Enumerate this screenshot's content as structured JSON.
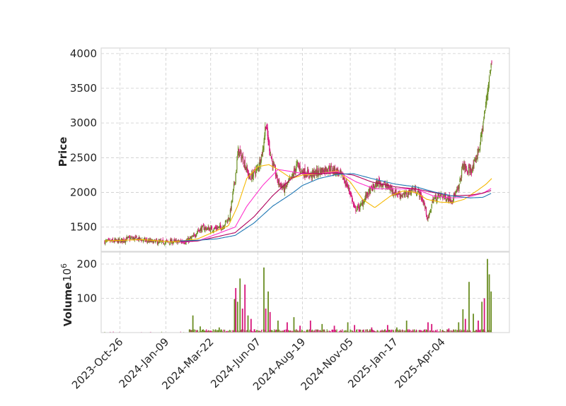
{
  "chart_data": {
    "type": "candlestick",
    "title": "",
    "colors": {
      "up": "#6b8e23",
      "down": "#d6157a",
      "ma_a": "#f5b800",
      "ma_b": "#ff33cc",
      "ma_c": "#b0005c",
      "ma_d": "#1f77b4",
      "grid": "#cccccc",
      "frame": "#d9d9d9"
    },
    "x_axis": {
      "start": "2023-10-01",
      "end": "2025-06-24",
      "tick_dates": [
        "2023-10-26",
        "2024-01-09",
        "2024-03-22",
        "2024-06-07",
        "2024-08-19",
        "2024-11-05",
        "2025-01-17",
        "2025-04-04"
      ],
      "tick_labels": [
        "2023-Oct-26",
        "2024-Jan-09",
        "2024-Mar-22",
        "2024-Jun-07",
        "2024-Aug-19",
        "2024-Nov-05",
        "2025-Jan-17",
        "2025-Apr-04"
      ]
    },
    "price_panel": {
      "ylabel": "Price",
      "ylim": [
        1150,
        4080
      ],
      "yticks": [
        1500,
        2000,
        2500,
        3000,
        3500,
        4000
      ],
      "ytick_labels": [
        "1500",
        "2000",
        "2500",
        "3000",
        "3500",
        "4000"
      ],
      "close_path": [
        [
          "2023-10-01",
          1290
        ],
        [
          "2023-10-26",
          1300
        ],
        [
          "2023-11-10",
          1340
        ],
        [
          "2023-11-25",
          1330
        ],
        [
          "2023-12-10",
          1300
        ],
        [
          "2024-01-01",
          1280
        ],
        [
          "2024-01-20",
          1290
        ],
        [
          "2024-02-10",
          1290
        ],
        [
          "2024-02-22",
          1350
        ],
        [
          "2024-03-01",
          1450
        ],
        [
          "2024-03-10",
          1490
        ],
        [
          "2024-03-22",
          1470
        ],
        [
          "2024-04-10",
          1500
        ],
        [
          "2024-04-22",
          1650
        ],
        [
          "2024-05-01",
          2200
        ],
        [
          "2024-05-06",
          2600
        ],
        [
          "2024-05-15",
          2450
        ],
        [
          "2024-05-25",
          2200
        ],
        [
          "2024-06-07",
          2350
        ],
        [
          "2024-06-15",
          2600
        ],
        [
          "2024-06-20",
          3000
        ],
        [
          "2024-06-23",
          2800
        ],
        [
          "2024-06-30",
          2450
        ],
        [
          "2024-07-10",
          2150
        ],
        [
          "2024-07-20",
          2050
        ],
        [
          "2024-08-01",
          2200
        ],
        [
          "2024-08-10",
          2400
        ],
        [
          "2024-08-19",
          2300
        ],
        [
          "2024-09-01",
          2250
        ],
        [
          "2024-09-15",
          2300
        ],
        [
          "2024-10-01",
          2350
        ],
        [
          "2024-10-15",
          2300
        ],
        [
          "2024-10-25",
          2200
        ],
        [
          "2024-11-05",
          2000
        ],
        [
          "2024-11-12",
          1750
        ],
        [
          "2024-11-22",
          1800
        ],
        [
          "2024-12-01",
          1950
        ],
        [
          "2024-12-10",
          2050
        ],
        [
          "2024-12-22",
          2150
        ],
        [
          "2025-01-01",
          2100
        ],
        [
          "2025-01-10",
          2050
        ],
        [
          "2025-01-17",
          2000
        ],
        [
          "2025-02-01",
          1950
        ],
        [
          "2025-02-15",
          2050
        ],
        [
          "2025-02-25",
          2000
        ],
        [
          "2025-03-05",
          1850
        ],
        [
          "2025-03-12",
          1600
        ],
        [
          "2025-03-20",
          1900
        ],
        [
          "2025-04-01",
          1950
        ],
        [
          "2025-04-04",
          1950
        ],
        [
          "2025-04-20",
          1900
        ],
        [
          "2025-05-01",
          2050
        ],
        [
          "2025-05-08",
          2400
        ],
        [
          "2025-05-15",
          2300
        ],
        [
          "2025-05-25",
          2350
        ],
        [
          "2025-06-05",
          2700
        ],
        [
          "2025-06-15",
          3300
        ],
        [
          "2025-06-20",
          3700
        ],
        [
          "2025-06-24",
          3850
        ]
      ],
      "ma_a_path": [
        [
          "2023-10-01",
          1300
        ],
        [
          "2023-12-01",
          1320
        ],
        [
          "2024-01-20",
          1285
        ],
        [
          "2024-03-01",
          1330
        ],
        [
          "2024-04-01",
          1450
        ],
        [
          "2024-04-20",
          1520
        ],
        [
          "2024-05-05",
          1800
        ],
        [
          "2024-05-20",
          2200
        ],
        [
          "2024-06-07",
          2370
        ],
        [
          "2024-06-25",
          2400
        ],
        [
          "2024-07-10",
          2330
        ],
        [
          "2024-08-01",
          2200
        ],
        [
          "2024-08-19",
          2250
        ],
        [
          "2024-09-15",
          2270
        ],
        [
          "2024-10-15",
          2310
        ],
        [
          "2024-11-05",
          2150
        ],
        [
          "2024-11-25",
          1900
        ],
        [
          "2024-12-15",
          1780
        ],
        [
          "2025-01-10",
          1950
        ],
        [
          "2025-01-30",
          2020
        ],
        [
          "2025-02-20",
          2000
        ],
        [
          "2025-03-10",
          1900
        ],
        [
          "2025-04-01",
          1860
        ],
        [
          "2025-04-20",
          1850
        ],
        [
          "2025-05-10",
          1900
        ],
        [
          "2025-06-01",
          2030
        ],
        [
          "2025-06-15",
          2120
        ],
        [
          "2025-06-24",
          2200
        ]
      ],
      "ma_b_path": [
        [
          "2024-02-01",
          1280
        ],
        [
          "2024-03-01",
          1300
        ],
        [
          "2024-04-01",
          1400
        ],
        [
          "2024-05-01",
          1500
        ],
        [
          "2024-05-20",
          1800
        ],
        [
          "2024-06-15",
          2100
        ],
        [
          "2024-07-10",
          2330
        ],
        [
          "2024-08-01",
          2300
        ],
        [
          "2024-08-19",
          2270
        ],
        [
          "2024-09-15",
          2270
        ],
        [
          "2024-10-15",
          2300
        ],
        [
          "2024-11-15",
          2150
        ],
        [
          "2024-12-15",
          2050
        ],
        [
          "2025-01-17",
          2050
        ],
        [
          "2025-02-20",
          2050
        ],
        [
          "2025-03-20",
          1950
        ],
        [
          "2025-04-20",
          1920
        ],
        [
          "2025-05-15",
          1930
        ],
        [
          "2025-06-10",
          1990
        ],
        [
          "2025-06-24",
          2060
        ]
      ],
      "ma_c_path": [
        [
          "2024-02-01",
          1290
        ],
        [
          "2024-03-01",
          1300
        ],
        [
          "2024-04-01",
          1360
        ],
        [
          "2024-05-01",
          1420
        ],
        [
          "2024-06-01",
          1650
        ],
        [
          "2024-07-01",
          1950
        ],
        [
          "2024-08-01",
          2200
        ],
        [
          "2024-08-19",
          2280
        ],
        [
          "2024-09-15",
          2270
        ],
        [
          "2024-10-15",
          2280
        ],
        [
          "2024-11-10",
          2250
        ],
        [
          "2024-12-10",
          2150
        ],
        [
          "2025-01-17",
          2080
        ],
        [
          "2025-02-20",
          2050
        ],
        [
          "2025-03-20",
          2000
        ],
        [
          "2025-04-20",
          1950
        ],
        [
          "2025-05-20",
          1960
        ],
        [
          "2025-06-10",
          1990
        ],
        [
          "2025-06-24",
          2030
        ]
      ],
      "ma_d_path": [
        [
          "2024-02-01",
          1300
        ],
        [
          "2024-03-01",
          1310
        ],
        [
          "2024-04-01",
          1330
        ],
        [
          "2024-05-01",
          1380
        ],
        [
          "2024-06-01",
          1560
        ],
        [
          "2024-07-01",
          1800
        ],
        [
          "2024-08-01",
          1980
        ],
        [
          "2024-08-19",
          2100
        ],
        [
          "2024-09-15",
          2200
        ],
        [
          "2024-10-15",
          2260
        ],
        [
          "2024-11-10",
          2270
        ],
        [
          "2024-12-10",
          2200
        ],
        [
          "2025-01-17",
          2120
        ],
        [
          "2025-02-20",
          2080
        ],
        [
          "2025-03-20",
          2010
        ],
        [
          "2025-04-20",
          1950
        ],
        [
          "2025-05-20",
          1920
        ],
        [
          "2025-06-10",
          1930
        ],
        [
          "2025-06-24",
          1990
        ]
      ]
    },
    "volume_panel": {
      "ylabel": "Volume",
      "exponent_label": "10",
      "exponent_power": "6",
      "ylim": [
        0,
        235
      ],
      "yticks": [
        100,
        200
      ],
      "ytick_labels": [
        "100",
        "200"
      ],
      "spikes": [
        [
          "2024-02-22",
          50,
          "up"
        ],
        [
          "2024-03-05",
          18,
          "up"
        ],
        [
          "2024-04-05",
          15,
          "up"
        ],
        [
          "2024-04-30",
          98,
          "up"
        ],
        [
          "2024-05-02",
          130,
          "down"
        ],
        [
          "2024-05-05",
          90,
          "up"
        ],
        [
          "2024-05-09",
          158,
          "up"
        ],
        [
          "2024-05-13",
          70,
          "down"
        ],
        [
          "2024-05-17",
          140,
          "down"
        ],
        [
          "2024-05-22",
          50,
          "up"
        ],
        [
          "2024-05-27",
          40,
          "down"
        ],
        [
          "2024-06-17",
          190,
          "up"
        ],
        [
          "2024-06-20",
          70,
          "down"
        ],
        [
          "2024-06-24",
          120,
          "up"
        ],
        [
          "2024-06-27",
          60,
          "down"
        ],
        [
          "2024-07-10",
          35,
          "up"
        ],
        [
          "2024-07-25",
          30,
          "down"
        ],
        [
          "2024-08-05",
          45,
          "up"
        ],
        [
          "2024-08-15",
          20,
          "down"
        ],
        [
          "2024-09-01",
          35,
          "down"
        ],
        [
          "2024-09-20",
          25,
          "up"
        ],
        [
          "2024-10-10",
          20,
          "down"
        ],
        [
          "2024-11-01",
          30,
          "up"
        ],
        [
          "2024-11-12",
          22,
          "down"
        ],
        [
          "2024-12-10",
          15,
          "down"
        ],
        [
          "2025-01-05",
          22,
          "down"
        ],
        [
          "2025-01-20",
          15,
          "up"
        ],
        [
          "2025-02-05",
          35,
          "up"
        ],
        [
          "2025-03-12",
          30,
          "down"
        ],
        [
          "2025-03-18",
          25,
          "down"
        ],
        [
          "2025-04-15",
          12,
          "down"
        ],
        [
          "2025-05-01",
          30,
          "up"
        ],
        [
          "2025-05-08",
          68,
          "up"
        ],
        [
          "2025-05-12",
          40,
          "down"
        ],
        [
          "2025-05-18",
          148,
          "up"
        ],
        [
          "2025-05-25",
          55,
          "up"
        ],
        [
          "2025-06-02",
          35,
          "down"
        ],
        [
          "2025-06-08",
          90,
          "up"
        ],
        [
          "2025-06-12",
          100,
          "down"
        ],
        [
          "2025-06-17",
          215,
          "up"
        ],
        [
          "2025-06-20",
          170,
          "up"
        ],
        [
          "2025-06-23",
          120,
          "up"
        ]
      ]
    }
  }
}
